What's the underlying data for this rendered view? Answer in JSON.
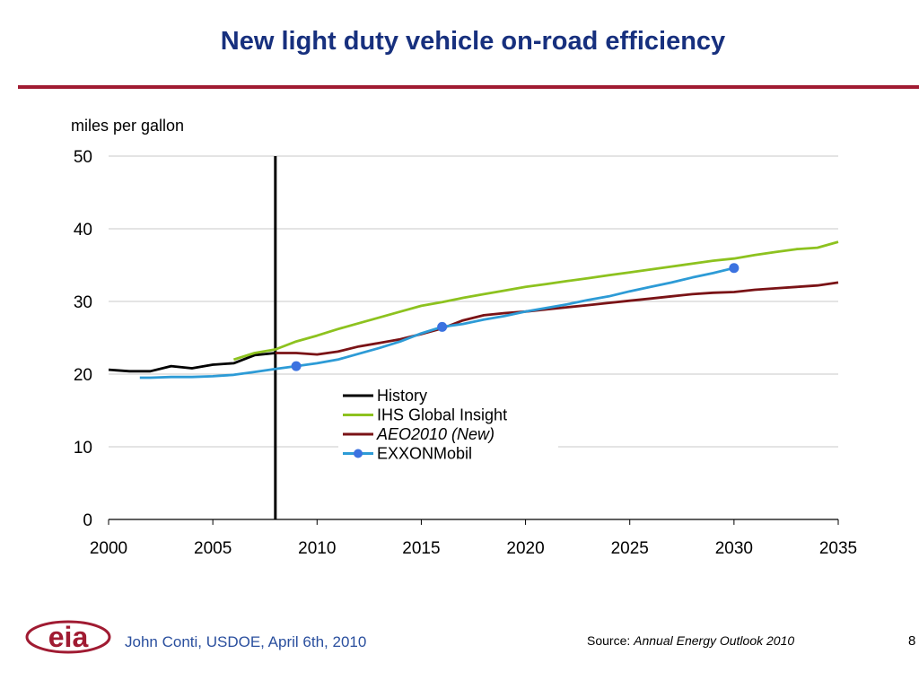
{
  "slide": {
    "title": "New light duty vehicle on-road efficiency",
    "footer_author": "John Conti, USDOE, April 6th, 2010",
    "source_prefix": "Source: ",
    "source_title": "Annual Energy Outlook 2010",
    "page_number": "8",
    "logo_text": "eia",
    "colors": {
      "title": "#17307e",
      "rule": "#a01b32",
      "footer": "#2a4f9e",
      "logo": "#a01b32"
    }
  },
  "chart_data": {
    "type": "line",
    "ylabel": "miles per gallon",
    "xlim": [
      2000,
      2035
    ],
    "ylim": [
      0,
      50
    ],
    "x_ticks": [
      "2000",
      "2005",
      "2010",
      "2015",
      "2020",
      "2025",
      "2030",
      "2035"
    ],
    "y_ticks": [
      "0",
      "10",
      "20",
      "30",
      "40",
      "50"
    ],
    "grid": true,
    "divider_year": 2008,
    "legend_position": "center",
    "series": [
      {
        "name": "History",
        "color": "#000000",
        "italic": false,
        "markers": false,
        "points": [
          [
            2000,
            20.6
          ],
          [
            2001,
            20.4
          ],
          [
            2002,
            20.4
          ],
          [
            2003,
            21.1
          ],
          [
            2004,
            20.8
          ],
          [
            2005,
            21.3
          ],
          [
            2006,
            21.5
          ],
          [
            2007,
            22.6
          ],
          [
            2008,
            22.9
          ]
        ]
      },
      {
        "name": "IHS Global Insight",
        "color": "#8dc21f",
        "italic": false,
        "markers": false,
        "points": [
          [
            2006,
            22.0
          ],
          [
            2007,
            22.9
          ],
          [
            2008,
            23.4
          ],
          [
            2009,
            24.5
          ],
          [
            2010,
            25.3
          ],
          [
            2011,
            26.2
          ],
          [
            2012,
            27.0
          ],
          [
            2013,
            27.8
          ],
          [
            2014,
            28.6
          ],
          [
            2015,
            29.4
          ],
          [
            2016,
            29.9
          ],
          [
            2017,
            30.5
          ],
          [
            2018,
            31.0
          ],
          [
            2019,
            31.5
          ],
          [
            2020,
            32.0
          ],
          [
            2021,
            32.4
          ],
          [
            2022,
            32.8
          ],
          [
            2023,
            33.2
          ],
          [
            2024,
            33.6
          ],
          [
            2025,
            34.0
          ],
          [
            2026,
            34.4
          ],
          [
            2027,
            34.8
          ],
          [
            2028,
            35.2
          ],
          [
            2029,
            35.6
          ],
          [
            2030,
            35.9
          ],
          [
            2031,
            36.4
          ],
          [
            2032,
            36.8
          ],
          [
            2033,
            37.2
          ],
          [
            2034,
            37.4
          ],
          [
            2035,
            38.2
          ]
        ]
      },
      {
        "name": "AEO2010 (New)",
        "color": "#7a1316",
        "italic": true,
        "markers": false,
        "points": [
          [
            2008,
            22.9
          ],
          [
            2009,
            22.9
          ],
          [
            2010,
            22.7
          ],
          [
            2011,
            23.1
          ],
          [
            2012,
            23.8
          ],
          [
            2013,
            24.3
          ],
          [
            2014,
            24.8
          ],
          [
            2015,
            25.5
          ],
          [
            2016,
            26.3
          ],
          [
            2017,
            27.4
          ],
          [
            2018,
            28.1
          ],
          [
            2019,
            28.4
          ],
          [
            2020,
            28.6
          ],
          [
            2021,
            28.9
          ],
          [
            2022,
            29.2
          ],
          [
            2023,
            29.5
          ],
          [
            2024,
            29.8
          ],
          [
            2025,
            30.1
          ],
          [
            2026,
            30.4
          ],
          [
            2027,
            30.7
          ],
          [
            2028,
            31.0
          ],
          [
            2029,
            31.2
          ],
          [
            2030,
            31.3
          ],
          [
            2031,
            31.6
          ],
          [
            2032,
            31.8
          ],
          [
            2033,
            32.0
          ],
          [
            2034,
            32.2
          ],
          [
            2035,
            32.6
          ]
        ]
      },
      {
        "name": "EXXONMobil",
        "color": "#2d9bd6",
        "marker_color": "#3b72e0",
        "italic": false,
        "markers": true,
        "marker_points": [
          [
            2009,
            21.1
          ],
          [
            2016,
            26.5
          ],
          [
            2030,
            34.6
          ]
        ],
        "points": [
          [
            2001.5,
            19.5
          ],
          [
            2002,
            19.5
          ],
          [
            2003,
            19.6
          ],
          [
            2004,
            19.6
          ],
          [
            2005,
            19.7
          ],
          [
            2006,
            19.9
          ],
          [
            2007,
            20.3
          ],
          [
            2008,
            20.7
          ],
          [
            2009,
            21.1
          ],
          [
            2010,
            21.5
          ],
          [
            2011,
            22.0
          ],
          [
            2012,
            22.8
          ],
          [
            2013,
            23.6
          ],
          [
            2014,
            24.5
          ],
          [
            2015,
            25.6
          ],
          [
            2016,
            26.5
          ],
          [
            2017,
            26.9
          ],
          [
            2018,
            27.5
          ],
          [
            2019,
            28.0
          ],
          [
            2020,
            28.6
          ],
          [
            2021,
            29.1
          ],
          [
            2022,
            29.6
          ],
          [
            2023,
            30.2
          ],
          [
            2024,
            30.7
          ],
          [
            2025,
            31.4
          ],
          [
            2026,
            32.0
          ],
          [
            2027,
            32.6
          ],
          [
            2028,
            33.3
          ],
          [
            2029,
            33.9
          ],
          [
            2030,
            34.6
          ],
          [
            2030.2,
            34.7
          ]
        ]
      }
    ]
  }
}
